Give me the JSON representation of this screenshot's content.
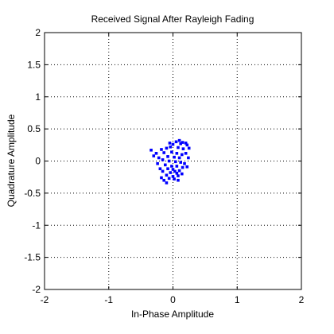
{
  "chart_data": {
    "type": "scatter",
    "title": "Received Signal After Rayleigh Fading",
    "xlabel": "In-Phase Amplitude",
    "ylabel": "Quadrature Amplitude",
    "xlim": [
      -2,
      2
    ],
    "ylim": [
      -2,
      2
    ],
    "xticks": [
      "-2",
      "-1",
      "0",
      "1",
      "2"
    ],
    "yticks": [
      "-2",
      "-1.5",
      "-1",
      "-0.5",
      "0",
      "0.5",
      "1",
      "1.5",
      "2"
    ],
    "grid": true,
    "marker_color": "#0000ff",
    "series": [
      {
        "points": [
          [
            0.05,
            0.3
          ],
          [
            0.1,
            0.32
          ],
          [
            0.15,
            0.29
          ],
          [
            0.2,
            0.28
          ],
          [
            0.22,
            0.25
          ],
          [
            0.12,
            0.27
          ],
          [
            0.0,
            0.26
          ],
          [
            -0.05,
            0.28
          ],
          [
            -0.04,
            0.22
          ],
          [
            0.08,
            0.21
          ],
          [
            0.16,
            0.19
          ],
          [
            0.25,
            0.2
          ],
          [
            -0.1,
            0.2
          ],
          [
            -0.18,
            0.18
          ],
          [
            -0.34,
            0.17
          ],
          [
            -0.26,
            0.12
          ],
          [
            -0.14,
            0.13
          ],
          [
            -0.02,
            0.14
          ],
          [
            0.06,
            0.12
          ],
          [
            0.14,
            0.1
          ],
          [
            0.2,
            0.12
          ],
          [
            0.24,
            0.05
          ],
          [
            0.1,
            0.05
          ],
          [
            0.02,
            0.06
          ],
          [
            -0.08,
            0.07
          ],
          [
            -0.22,
            0.05
          ],
          [
            -0.3,
            0.08
          ],
          [
            -0.16,
            0.02
          ],
          [
            -0.06,
            0.0
          ],
          [
            0.04,
            -0.01
          ],
          [
            0.12,
            -0.02
          ],
          [
            0.18,
            -0.04
          ],
          [
            -0.24,
            -0.04
          ],
          [
            -0.12,
            -0.06
          ],
          [
            -0.02,
            -0.08
          ],
          [
            0.06,
            -0.08
          ],
          [
            0.15,
            -0.1
          ],
          [
            0.22,
            -0.09
          ],
          [
            -0.2,
            -0.12
          ],
          [
            -0.08,
            -0.12
          ],
          [
            0.0,
            -0.13
          ],
          [
            0.03,
            -0.16
          ],
          [
            0.1,
            -0.15
          ],
          [
            -0.16,
            -0.16
          ],
          [
            -0.04,
            -0.18
          ],
          [
            0.06,
            -0.19
          ],
          [
            0.14,
            -0.2
          ],
          [
            -0.1,
            -0.22
          ],
          [
            0.0,
            -0.24
          ],
          [
            0.08,
            -0.23
          ],
          [
            -0.06,
            -0.27
          ],
          [
            0.02,
            -0.28
          ],
          [
            -0.14,
            -0.3
          ],
          [
            0.08,
            -0.3
          ],
          [
            -0.1,
            -0.34
          ],
          [
            -0.18,
            -0.26
          ]
        ]
      }
    ]
  }
}
